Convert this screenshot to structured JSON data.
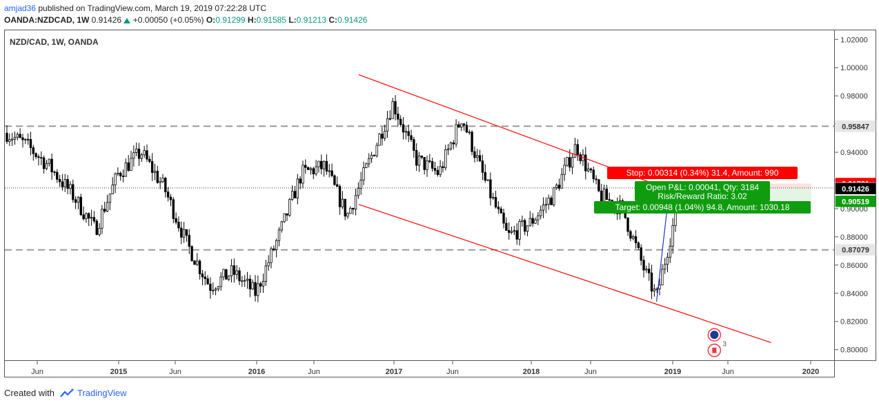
{
  "header": {
    "user": "amjad36",
    "published": "published on TradingView.com, March 19, 2019 07:22:28 UTC",
    "symbol_line": "OANDA:NZDCAD, 1W",
    "last": "0.91426",
    "change": "+0.00050 (+0.05%)",
    "open_label": "O:",
    "open": "0.91299",
    "high_label": "H:",
    "high": "0.91585",
    "low_label": "L:",
    "low": "0.91213",
    "close_label": "C:",
    "close": "0.91426"
  },
  "chart_title": "NZD/CAD, 1W, OANDA",
  "footer": {
    "created_with": "Created with",
    "brand": "TradingView"
  },
  "colors": {
    "up": "#089981",
    "down": "#f23645",
    "trend": "#ff0000",
    "target": "#0f9d0f",
    "stop": "#ff0000",
    "dark": "#000000",
    "blue": "#2233cc"
  },
  "icons": [
    "new-zealand-flag-icon",
    "canada-flag-icon"
  ],
  "event_count": "3",
  "chart_data": {
    "type": "candlestick",
    "title": "NZD/CAD, 1W, OANDA",
    "ylim": [
      0.7925,
      1.0265
    ],
    "y_ticks": [
      "1.02000",
      "1.00000",
      "0.98000",
      "0.96000",
      "0.94000",
      "0.92000",
      "0.90000",
      "0.88000",
      "0.86000",
      "0.84000",
      "0.82000",
      "0.80000"
    ],
    "x_ticks": [
      "Jun",
      "2015",
      "Jun",
      "2016",
      "Jun",
      "2017",
      "Jun",
      "2018",
      "Jun",
      "2019",
      "Jun",
      "2020"
    ],
    "price_labels": [
      {
        "value": 0.95847,
        "text": "0.95847",
        "bg": "#e6e6e6",
        "fg": "#333333"
      },
      {
        "value": 0.91781,
        "text": "0.91781",
        "bg": "#ff0000",
        "fg": "#ffffff"
      },
      {
        "value": 0.91467,
        "text": "0.91467",
        "bg": "#ffffff",
        "fg": "#000000"
      },
      {
        "value": 0.91426,
        "text": "0.91426",
        "bg": "#000000",
        "fg": "#ffffff"
      },
      {
        "value": 0.90519,
        "text": "0.90519",
        "bg": "#0f9d0f",
        "fg": "#ffffff"
      },
      {
        "value": 0.87079,
        "text": "0.87079",
        "bg": "#e6e6e6",
        "fg": "#333333"
      }
    ],
    "horizontal_levels": {
      "dashed": [
        0.95847,
        0.87079
      ],
      "dotted": [
        0.91467
      ]
    },
    "channel": {
      "upper": {
        "from": [
          "2016-10",
          "0.9950"
        ],
        "to": [
          "2018-12",
          "0.9170"
        ]
      },
      "lower": {
        "from": [
          "2016-10",
          "0.9030"
        ],
        "to": [
          "2019-10",
          "0.8050"
        ]
      }
    },
    "position": {
      "stop": "Stop: 0.00314 (0.34%) 31.4, Amount: 990",
      "open_pl": "Open P&L: 0.00041, Qty: 3184",
      "rr": "Risk/Reward Ratio: 3.02",
      "target": "Target: 0.00948 (1.04%) 94.8, Amount: 1030.18"
    },
    "price_anchors": [
      [
        "2014-03",
        0.955
      ],
      [
        "2014-05",
        0.945
      ],
      [
        "2014-07",
        0.93
      ],
      [
        "2014-09",
        0.91
      ],
      [
        "2014-11",
        0.885
      ],
      [
        "2015-01",
        0.925
      ],
      [
        "2015-03",
        0.94
      ],
      [
        "2015-05",
        0.915
      ],
      [
        "2015-07",
        0.875
      ],
      [
        "2015-09",
        0.845
      ],
      [
        "2015-11",
        0.855
      ],
      [
        "2016-01",
        0.84
      ],
      [
        "2016-03",
        0.88
      ],
      [
        "2016-05",
        0.925
      ],
      [
        "2016-07",
        0.93
      ],
      [
        "2016-09",
        0.895
      ],
      [
        "2016-11",
        0.935
      ],
      [
        "2017-01",
        0.975
      ],
      [
        "2017-03",
        0.935
      ],
      [
        "2017-05",
        0.925
      ],
      [
        "2017-07",
        0.965
      ],
      [
        "2017-09",
        0.92
      ],
      [
        "2017-11",
        0.88
      ],
      [
        "2018-01",
        0.89
      ],
      [
        "2018-03",
        0.91
      ],
      [
        "2018-05",
        0.945
      ],
      [
        "2018-07",
        0.91
      ],
      [
        "2018-09",
        0.9
      ],
      [
        "2018-11",
        0.855
      ],
      [
        "2018-12",
        0.837
      ],
      [
        "2019-02",
        0.908
      ],
      [
        "2019-03",
        0.914
      ]
    ]
  }
}
